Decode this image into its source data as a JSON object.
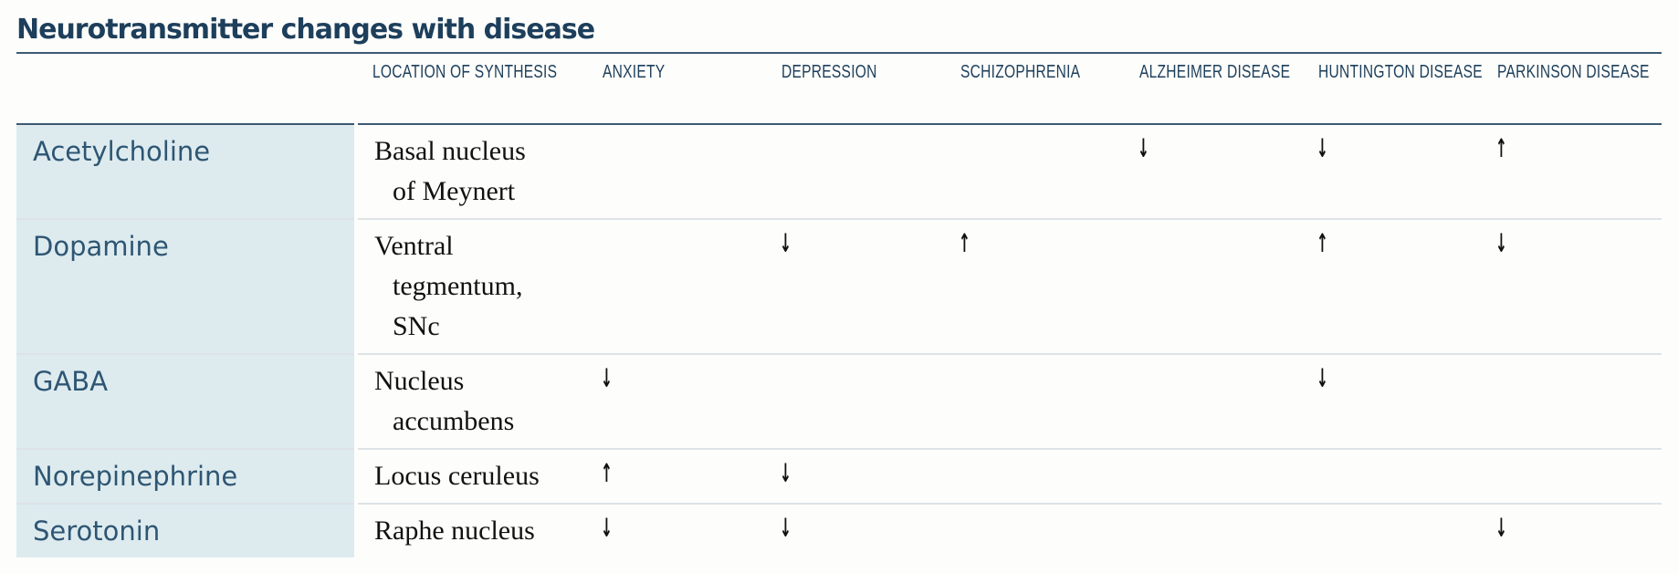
{
  "title": "Neurotransmitter changes with disease",
  "headers": [
    "",
    "LOCATION OF\nSYNTHESIS",
    "ANXIETY",
    "DEPRESSION",
    "SCHIZOPHRENIA",
    "ALZHEIMER\nDISEASE",
    "HUNTINGTON\nDISEASE",
    "PARKINSON\nDISEASE"
  ],
  "arrow_glyphs": {
    "up": "↑",
    "down": "↓"
  },
  "rows": [
    {
      "name": "Acetylcholine",
      "location": [
        "Basal nucleus",
        "of Meynert"
      ],
      "effects": [
        "",
        "",
        "",
        "↓",
        "↓",
        "↑"
      ]
    },
    {
      "name": "Dopamine",
      "location": [
        "Ventral",
        "tegmentum,",
        "SNc"
      ],
      "effects": [
        "",
        "↓",
        "↑",
        "",
        "↑",
        "↓"
      ]
    },
    {
      "name": "GABA",
      "location": [
        "Nucleus",
        "accumbens"
      ],
      "effects": [
        "↓",
        "",
        "",
        "",
        "↓",
        ""
      ]
    },
    {
      "name": "Norepinephrine",
      "location": [
        "Locus ceruleus"
      ],
      "effects": [
        "↑",
        "↓",
        "",
        "",
        "",
        ""
      ]
    },
    {
      "name": "Serotonin",
      "location": [
        "Raphe nucleus"
      ],
      "effects": [
        "↓",
        "↓",
        "",
        "",
        "",
        "↓"
      ]
    }
  ],
  "colors": {
    "title": "#1d3f5b",
    "rule": "#3d5a73",
    "name_bg": "#ddebef",
    "name_text": "#2e5673"
  }
}
